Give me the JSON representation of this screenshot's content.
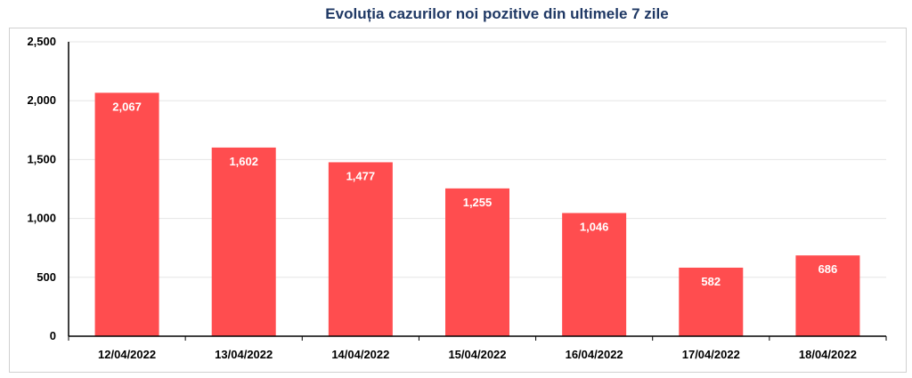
{
  "chart_data": {
    "type": "bar",
    "title": "Evoluția cazurilor noi pozitive din ultimele 7 zile",
    "categories": [
      "12/04/2022",
      "13/04/2022",
      "14/04/2022",
      "15/04/2022",
      "16/04/2022",
      "17/04/2022",
      "18/04/2022"
    ],
    "values": [
      2067,
      1602,
      1477,
      1255,
      1046,
      582,
      686
    ],
    "data_labels": [
      "2,067",
      "1,602",
      "1,477",
      "1,255",
      "1,046",
      "582",
      "686"
    ],
    "ylim": [
      0,
      2500
    ],
    "yticks": [
      0,
      500,
      1000,
      1500,
      2000,
      2500
    ],
    "ytick_labels": [
      "0",
      "500",
      "1,000",
      "1,500",
      "2,000",
      "2,500"
    ],
    "xlabel": "",
    "ylabel": "",
    "grid": true,
    "bar_color": "#ff4d4f"
  }
}
